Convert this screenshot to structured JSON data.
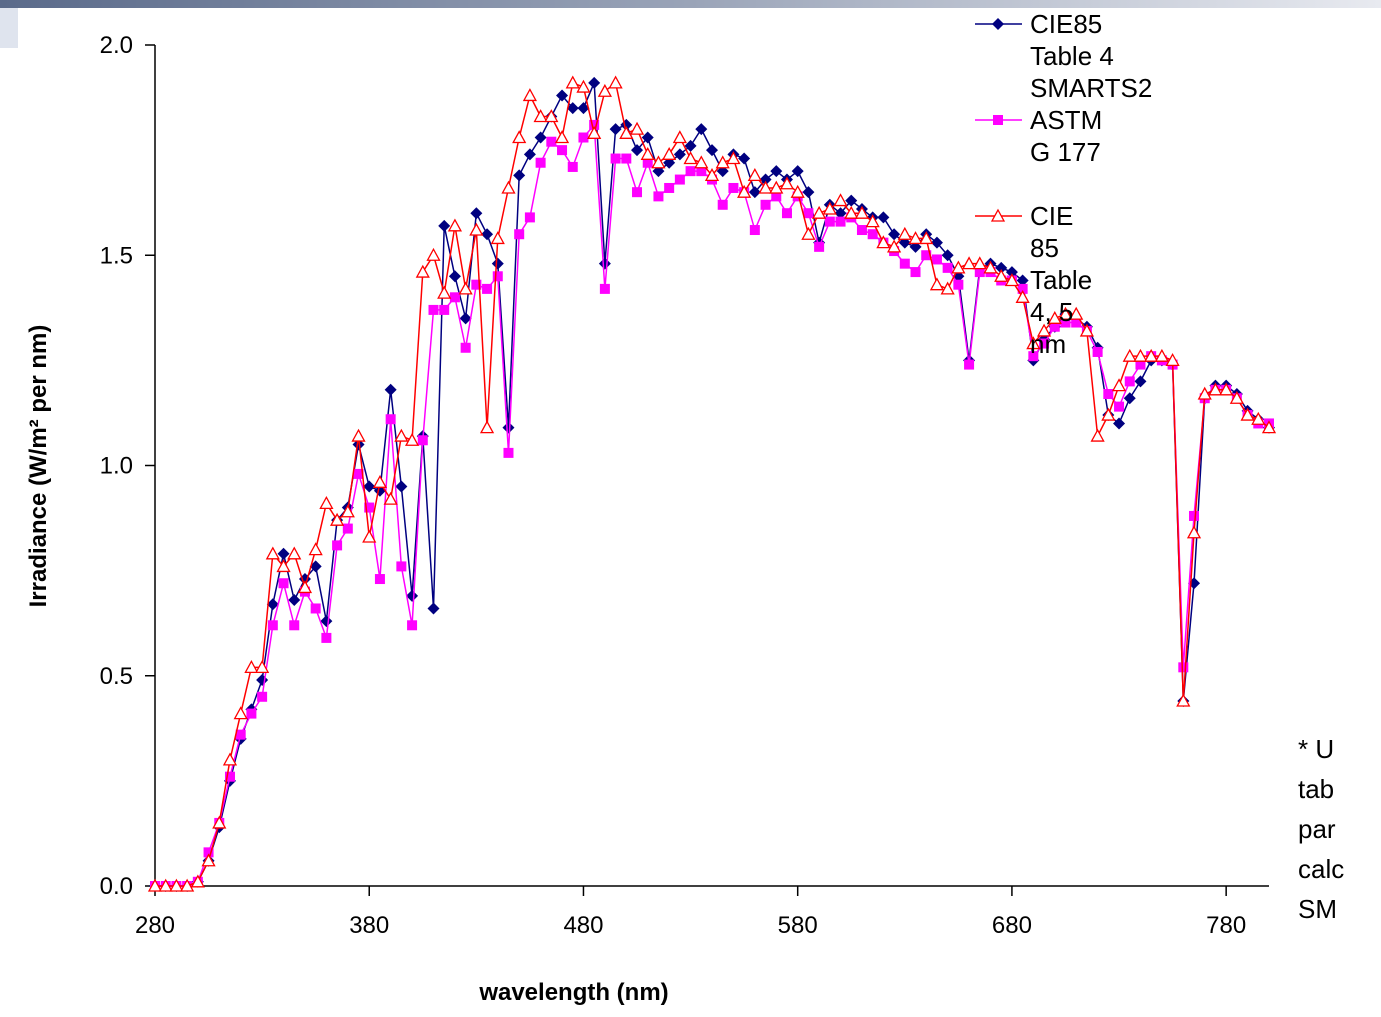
{
  "chart_data": {
    "type": "line",
    "xlabel": "wavelength (nm)",
    "ylabel": "Irradiance (W/m² per nm)",
    "annotation": [
      "* U",
      "tab",
      "par",
      "calc",
      "SM"
    ],
    "xlim": [
      280,
      800
    ],
    "ylim": [
      0,
      2
    ],
    "xticks": [
      280,
      380,
      480,
      580,
      680,
      780
    ],
    "yticks": [
      {
        "value": 0,
        "label": "0.0"
      },
      {
        "value": 0.5,
        "label": "0.5"
      },
      {
        "value": 1,
        "label": "1.0"
      },
      {
        "value": 1.5,
        "label": "1.5"
      },
      {
        "value": 2,
        "label": "2.0"
      }
    ],
    "legend": "top-right",
    "x": [
      280,
      285,
      290,
      295,
      300,
      305,
      310,
      315,
      320,
      325,
      330,
      335,
      340,
      345,
      350,
      355,
      360,
      365,
      370,
      375,
      380,
      385,
      390,
      395,
      400,
      405,
      410,
      415,
      420,
      425,
      430,
      435,
      440,
      445,
      450,
      455,
      460,
      465,
      470,
      475,
      480,
      485,
      490,
      495,
      500,
      505,
      510,
      515,
      520,
      525,
      530,
      535,
      540,
      545,
      550,
      555,
      560,
      565,
      570,
      575,
      580,
      585,
      590,
      595,
      600,
      605,
      610,
      615,
      620,
      625,
      630,
      635,
      640,
      645,
      650,
      655,
      660,
      665,
      670,
      675,
      680,
      685,
      690,
      695,
      700,
      705,
      710,
      715,
      720,
      725,
      730,
      735,
      740,
      745,
      750,
      755,
      760,
      765,
      770,
      775,
      780,
      785,
      790,
      795,
      800
    ],
    "series": [
      {
        "name": "CIE85 Table 4\nSMARTS2",
        "color": "#000080",
        "marker": "diamond",
        "values": [
          0,
          0,
          0,
          0,
          0.01,
          0.06,
          0.14,
          0.25,
          0.35,
          0.42,
          0.49,
          0.67,
          0.79,
          0.68,
          0.73,
          0.76,
          0.63,
          0.87,
          0.9,
          1.05,
          0.95,
          0.94,
          1.18,
          0.95,
          0.69,
          1.07,
          0.66,
          1.57,
          1.45,
          1.35,
          1.6,
          1.55,
          1.48,
          1.09,
          1.69,
          1.74,
          1.78,
          1.83,
          1.88,
          1.85,
          1.85,
          1.91,
          1.48,
          1.8,
          1.81,
          1.75,
          1.78,
          1.7,
          1.72,
          1.74,
          1.76,
          1.8,
          1.75,
          1.7,
          1.74,
          1.73,
          1.65,
          1.68,
          1.7,
          1.68,
          1.7,
          1.65,
          1.53,
          1.62,
          1.6,
          1.63,
          1.61,
          1.59,
          1.59,
          1.55,
          1.53,
          1.52,
          1.55,
          1.53,
          1.5,
          1.45,
          1.25,
          1.47,
          1.48,
          1.47,
          1.46,
          1.44,
          1.25,
          1.3,
          1.33,
          1.36,
          1.35,
          1.33,
          1.28,
          1.12,
          1.1,
          1.16,
          1.2,
          1.25,
          1.25,
          1.24,
          0.44,
          0.72,
          1.16,
          1.19,
          1.19,
          1.17,
          1.13,
          1.11,
          1.09
        ]
      },
      {
        "name": "ASTM G 177",
        "color": "#ff00ff",
        "marker": "square",
        "values": [
          0,
          0,
          0,
          0,
          0.01,
          0.08,
          0.15,
          0.26,
          0.36,
          0.41,
          0.45,
          0.62,
          0.72,
          0.62,
          0.7,
          0.66,
          0.59,
          0.81,
          0.85,
          0.98,
          0.9,
          0.73,
          1.11,
          0.76,
          0.62,
          1.06,
          1.37,
          1.37,
          1.4,
          1.28,
          1.43,
          1.42,
          1.45,
          1.03,
          1.55,
          1.59,
          1.72,
          1.77,
          1.75,
          1.71,
          1.78,
          1.81,
          1.42,
          1.73,
          1.73,
          1.65,
          1.72,
          1.64,
          1.66,
          1.68,
          1.7,
          1.7,
          1.68,
          1.62,
          1.66,
          1.65,
          1.56,
          1.62,
          1.64,
          1.6,
          1.64,
          1.6,
          1.52,
          1.58,
          1.58,
          1.59,
          1.56,
          1.55,
          1.53,
          1.51,
          1.48,
          1.46,
          1.5,
          1.49,
          1.47,
          1.43,
          1.24,
          1.46,
          1.46,
          1.44,
          1.44,
          1.42,
          1.26,
          1.29,
          1.33,
          1.34,
          1.34,
          1.32,
          1.27,
          1.17,
          1.14,
          1.2,
          1.24,
          1.26,
          1.25,
          1.24,
          0.52,
          0.88,
          1.16,
          1.18,
          1.18,
          1.16,
          1.12,
          1.1,
          1.1
        ]
      },
      {
        "name": "CIE 85 Table 4, 5 nm",
        "color": "#ff0000",
        "marker": "triangle",
        "values": [
          0,
          0,
          0,
          0,
          0.01,
          0.06,
          0.15,
          0.3,
          0.41,
          0.52,
          0.52,
          0.79,
          0.76,
          0.79,
          0.71,
          0.8,
          0.91,
          0.87,
          0.89,
          1.07,
          0.83,
          0.96,
          0.92,
          1.07,
          1.06,
          1.46,
          1.5,
          1.41,
          1.57,
          1.42,
          1.56,
          1.09,
          1.54,
          1.66,
          1.78,
          1.88,
          1.83,
          1.83,
          1.78,
          1.91,
          1.9,
          1.79,
          1.89,
          1.91,
          1.79,
          1.8,
          1.74,
          1.72,
          1.74,
          1.78,
          1.73,
          1.72,
          1.69,
          1.72,
          1.73,
          1.65,
          1.69,
          1.66,
          1.66,
          1.67,
          1.65,
          1.55,
          1.6,
          1.61,
          1.63,
          1.6,
          1.6,
          1.58,
          1.53,
          1.52,
          1.55,
          1.54,
          1.54,
          1.43,
          1.42,
          1.47,
          1.48,
          1.48,
          1.47,
          1.45,
          1.44,
          1.4,
          1.29,
          1.32,
          1.35,
          1.36,
          1.36,
          1.32,
          1.07,
          1.12,
          1.19,
          1.26,
          1.26,
          1.26,
          1.26,
          1.25,
          0.44,
          0.84,
          1.17,
          1.18,
          1.18,
          1.16,
          1.12,
          1.11,
          1.09
        ]
      }
    ]
  }
}
